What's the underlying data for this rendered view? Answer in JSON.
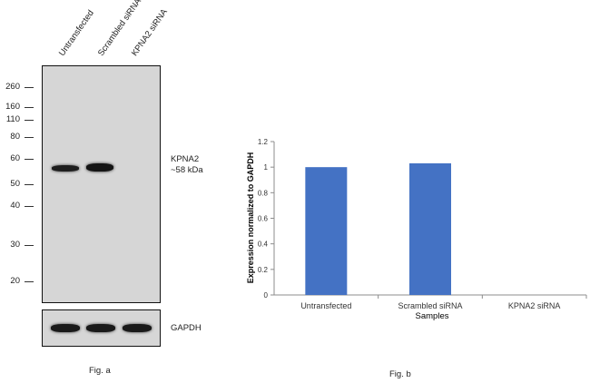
{
  "fig_a": {
    "lanes": [
      "Untransfected",
      "Scrambled siRNA",
      "KPNA2 siRNA"
    ],
    "mw_markers": [
      "260",
      "160",
      "110",
      "80",
      "60",
      "50",
      "40",
      "30",
      "20"
    ],
    "target_label": "KPNA2",
    "target_size": "~58 kDa",
    "loading_label": "GAPDH",
    "caption": "Fig. a"
  },
  "fig_b": {
    "caption": "Fig. b"
  },
  "chart_data": {
    "type": "bar",
    "categories": [
      "Untransfected",
      "Scrambled siRNA",
      "KPNA2 siRNA"
    ],
    "values": [
      1.0,
      1.03,
      0.0
    ],
    "xlabel": "Samples",
    "ylabel": "Expression normalized to GAPDH",
    "ylim": [
      0,
      1.2
    ],
    "yticks": [
      0,
      0.2,
      0.4,
      0.6,
      0.8,
      1,
      1.2
    ],
    "bar_color": "#4472c4",
    "grid": false
  }
}
